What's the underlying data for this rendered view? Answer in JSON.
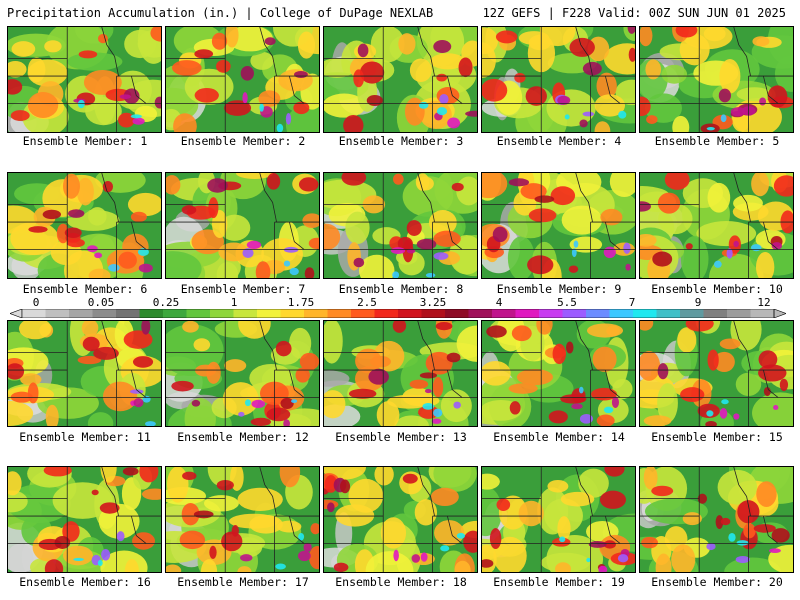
{
  "header": {
    "left_title": "Precipitation Accumulation (in.) | College of DuPage NEXLAB",
    "right_title": "12Z GEFS | F228 Valid: 00Z SUN JUN 01 2025"
  },
  "colorbar": {
    "labels": [
      "0",
      "0.05",
      "0.25",
      "1",
      "1.75",
      "2.5",
      "3.25",
      "4",
      "5.5",
      "7",
      "9",
      "12"
    ],
    "colors": [
      "#d9d9d9",
      "#bfbfbf",
      "#a6a6a6",
      "#8c8c8c",
      "#737373",
      "#2e8b2e",
      "#3ea83e",
      "#63c63e",
      "#8fd63a",
      "#c8e63c",
      "#f2f23a",
      "#ffd82e",
      "#ffb52a",
      "#ff8a24",
      "#ff5a1e",
      "#f2281c",
      "#d1141e",
      "#b0101c",
      "#8e0c26",
      "#a0105a",
      "#c0148c",
      "#e018c0",
      "#c83cf0",
      "#9c5cff",
      "#6c8cff",
      "#3cc8ff",
      "#20e8f0",
      "#40c0c8",
      "#609aa0",
      "#808080",
      "#9c9c9c",
      "#b8b8b8"
    ]
  },
  "members": [
    {
      "label": "Ensemble Member: 1"
    },
    {
      "label": "Ensemble Member: 2"
    },
    {
      "label": "Ensemble Member: 3"
    },
    {
      "label": "Ensemble Member: 4"
    },
    {
      "label": "Ensemble Member: 5"
    },
    {
      "label": "Ensemble Member: 6"
    },
    {
      "label": "Ensemble Member: 7"
    },
    {
      "label": "Ensemble Member: 8"
    },
    {
      "label": "Ensemble Member: 9"
    },
    {
      "label": "Ensemble Member: 10"
    },
    {
      "label": "Ensemble Member: 11"
    },
    {
      "label": "Ensemble Member: 12"
    },
    {
      "label": "Ensemble Member: 13"
    },
    {
      "label": "Ensemble Member: 14"
    },
    {
      "label": "Ensemble Member: 15"
    },
    {
      "label": "Ensemble Member: 16"
    },
    {
      "label": "Ensemble Member: 17"
    },
    {
      "label": "Ensemble Member: 18"
    },
    {
      "label": "Ensemble Member: 19"
    },
    {
      "label": "Ensemble Member: 20"
    }
  ]
}
